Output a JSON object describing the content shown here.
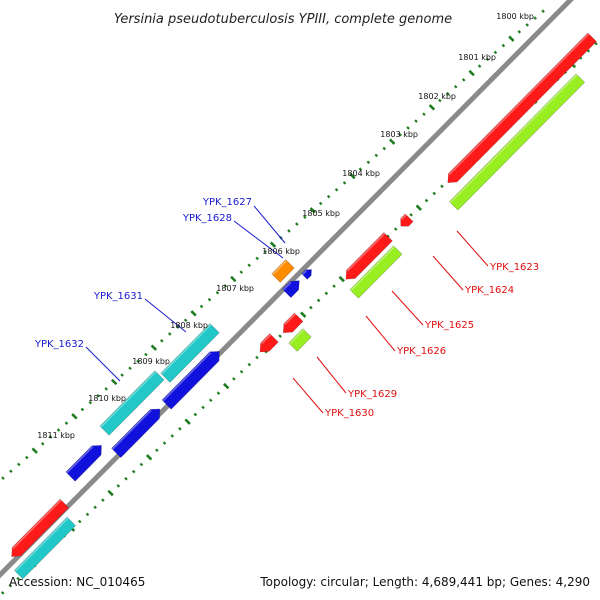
{
  "title": "Yersinia pseudotuberculosis YPIII, complete genome",
  "footer": {
    "accession": "Accession: NC_010465",
    "summary": "Topology: circular; Length: 4,689,441 bp; Genes: 4,290"
  },
  "colors": {
    "backbone": "#8a8a8a",
    "tick": "#1e7d1e",
    "plus_label": "#1a1ad0",
    "minus_label": "#e01010",
    "red": "#ff1a1a",
    "lime": "#99ee22",
    "cyan": "#22c8c8",
    "blue": "#1111dd",
    "orange": "#ff8c00"
  },
  "scale": {
    "unit": "kbp",
    "labels": [
      {
        "kbp": 1800,
        "text": "1800 kbp"
      },
      {
        "kbp": 1801,
        "text": "1801 kbp"
      },
      {
        "kbp": 1802,
        "text": "1802 kbp"
      },
      {
        "kbp": 1803,
        "text": "1803 kbp"
      },
      {
        "kbp": 1804,
        "text": "1804 kbp"
      },
      {
        "kbp": 1805,
        "text": "1805 kbp"
      },
      {
        "kbp": 1806,
        "text": "1806 kbp"
      },
      {
        "kbp": 1807,
        "text": "1807 kbp"
      },
      {
        "kbp": 1808,
        "text": "1808 kbp"
      },
      {
        "kbp": 1809,
        "text": "1809 kbp"
      },
      {
        "kbp": 1810,
        "text": "1810 kbp"
      },
      {
        "kbp": 1811,
        "text": "1811 kbp"
      }
    ]
  },
  "gene_labels": [
    {
      "id": "YPK_1627",
      "text": "YPK_1627",
      "strand": "plus"
    },
    {
      "id": "YPK_1628",
      "text": "YPK_1628",
      "strand": "plus"
    },
    {
      "id": "YPK_1631",
      "text": "YPK_1631",
      "strand": "plus"
    },
    {
      "id": "YPK_1632",
      "text": "YPK_1632",
      "strand": "plus"
    },
    {
      "id": "YPK_1623",
      "text": "YPK_1623",
      "strand": "minus"
    },
    {
      "id": "YPK_1624",
      "text": "YPK_1624",
      "strand": "minus"
    },
    {
      "id": "YPK_1625",
      "text": "YPK_1625",
      "strand": "minus"
    },
    {
      "id": "YPK_1626",
      "text": "YPK_1626",
      "strand": "minus"
    },
    {
      "id": "YPK_1629",
      "text": "YPK_1629",
      "strand": "minus"
    },
    {
      "id": "YPK_1630",
      "text": "YPK_1630",
      "strand": "minus"
    }
  ]
}
